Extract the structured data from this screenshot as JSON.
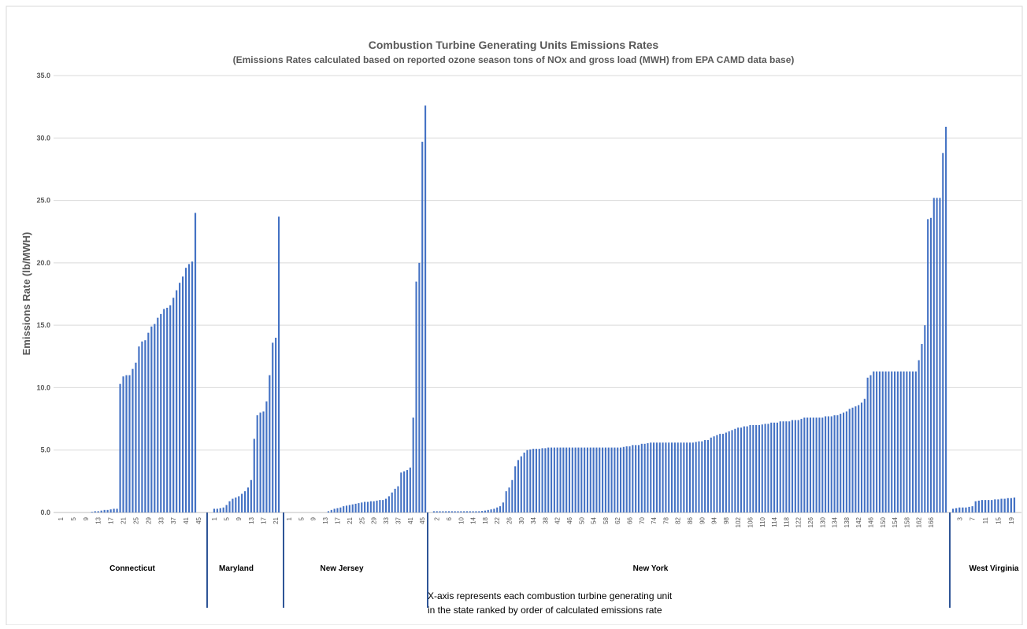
{
  "chart_data": {
    "type": "bar",
    "title": "Combustion Turbine Generating Units Emissions Rates",
    "subtitle": "(Emissions Rates calculated based on reported ozone season tons of NOx and gross load (MWH) from EPA CAMD data base)",
    "ylabel": "Emissions Rate (lb/MWH)",
    "ylim": [
      0,
      35
    ],
    "yticks": [
      "0.0",
      "5.0",
      "10.0",
      "15.0",
      "20.0",
      "25.0",
      "30.0",
      "35.0"
    ],
    "grid": true,
    "legend": "none",
    "annotation": [
      "X-axis represents each combustion turbine generating unit",
      "in the state ranked by order of calculated emissions rate"
    ],
    "bar_color": "#4472c4",
    "divider_color": "#2f5597",
    "groups": [
      {
        "name": "Connecticut",
        "tick_labels": [
          "1",
          "5",
          "9",
          "13",
          "17",
          "21",
          "25",
          "29",
          "33",
          "37",
          "41",
          "45"
        ],
        "values": [
          0,
          0,
          0,
          0,
          0,
          0,
          0,
          0,
          0,
          0,
          0.05,
          0.1,
          0.1,
          0.15,
          0.2,
          0.2,
          0.25,
          0.3,
          0.3,
          10.3,
          10.9,
          11.0,
          11.0,
          11.5,
          12.0,
          13.3,
          13.7,
          13.8,
          14.4,
          14.9,
          15.1,
          15.6,
          15.9,
          16.3,
          16.4,
          16.6,
          17.2,
          17.8,
          18.4,
          18.9,
          19.6,
          19.9,
          20.1,
          24.0
        ]
      },
      {
        "name": "Maryland",
        "tick_labels": [
          "1",
          "5",
          "9",
          "13",
          "17",
          "21"
        ],
        "values": [
          0.3,
          0.3,
          0.35,
          0.4,
          0.6,
          0.9,
          1.1,
          1.2,
          1.3,
          1.5,
          1.7,
          2.0,
          2.6,
          5.9,
          7.8,
          8.0,
          8.1,
          8.9,
          11.0,
          13.6,
          14.0,
          23.7
        ]
      },
      {
        "name": "New Jersey",
        "tick_labels": [
          "1",
          "5",
          "9",
          "13",
          "17",
          "21",
          "25",
          "29",
          "33",
          "37",
          "41",
          "45"
        ],
        "values": [
          0,
          0,
          0,
          0,
          0,
          0,
          0,
          0,
          0,
          0,
          0,
          0,
          0,
          0.1,
          0.2,
          0.3,
          0.35,
          0.4,
          0.5,
          0.55,
          0.6,
          0.65,
          0.7,
          0.75,
          0.8,
          0.85,
          0.85,
          0.9,
          0.9,
          0.95,
          1.0,
          1.0,
          1.1,
          1.3,
          1.6,
          1.9,
          2.1,
          3.2,
          3.3,
          3.4,
          3.6,
          7.6,
          18.5,
          20.0,
          29.7,
          32.6
        ]
      },
      {
        "name": "New York",
        "tick_labels": [
          "2",
          "6",
          "10",
          "14",
          "18",
          "22",
          "26",
          "30",
          "34",
          "38",
          "42",
          "46",
          "50",
          "54",
          "58",
          "62",
          "66",
          "70",
          "74",
          "78",
          "82",
          "86",
          "90",
          "94",
          "98",
          "102",
          "106",
          "110",
          "114",
          "118",
          "122",
          "126",
          "130",
          "134",
          "138",
          "142",
          "146",
          "150",
          "154",
          "158",
          "162",
          "166"
        ],
        "values": [
          0.1,
          0.1,
          0.1,
          0.1,
          0.1,
          0.1,
          0.1,
          0.1,
          0.1,
          0.1,
          0.1,
          0.1,
          0.1,
          0.1,
          0.1,
          0.1,
          0.12,
          0.15,
          0.2,
          0.25,
          0.3,
          0.4,
          0.5,
          0.8,
          1.7,
          2.0,
          2.6,
          3.7,
          4.2,
          4.5,
          4.8,
          5.0,
          5.05,
          5.1,
          5.1,
          5.1,
          5.15,
          5.15,
          5.2,
          5.2,
          5.2,
          5.2,
          5.2,
          5.2,
          5.2,
          5.2,
          5.2,
          5.2,
          5.2,
          5.2,
          5.2,
          5.2,
          5.2,
          5.2,
          5.2,
          5.2,
          5.2,
          5.2,
          5.2,
          5.2,
          5.2,
          5.2,
          5.2,
          5.25,
          5.3,
          5.3,
          5.4,
          5.4,
          5.4,
          5.5,
          5.5,
          5.55,
          5.6,
          5.6,
          5.6,
          5.6,
          5.6,
          5.6,
          5.6,
          5.6,
          5.6,
          5.6,
          5.6,
          5.6,
          5.6,
          5.6,
          5.6,
          5.65,
          5.7,
          5.7,
          5.8,
          5.8,
          6.0,
          6.1,
          6.2,
          6.3,
          6.3,
          6.4,
          6.5,
          6.6,
          6.7,
          6.8,
          6.8,
          6.9,
          6.9,
          7.0,
          7.0,
          7.0,
          7.0,
          7.05,
          7.1,
          7.1,
          7.2,
          7.2,
          7.2,
          7.3,
          7.3,
          7.3,
          7.3,
          7.4,
          7.4,
          7.4,
          7.5,
          7.6,
          7.6,
          7.6,
          7.6,
          7.6,
          7.6,
          7.6,
          7.7,
          7.7,
          7.7,
          7.8,
          7.8,
          7.9,
          8.0,
          8.1,
          8.3,
          8.4,
          8.5,
          8.6,
          8.8,
          9.1,
          10.8,
          11.0,
          11.3,
          11.3,
          11.3,
          11.3,
          11.3,
          11.3,
          11.3,
          11.3,
          11.3,
          11.3,
          11.3,
          11.3,
          11.3,
          11.3,
          11.3,
          12.2,
          13.5,
          15.0,
          23.5,
          23.6,
          25.2,
          25.2,
          25.2,
          28.8,
          30.9
        ]
      },
      {
        "name": "West Virginia",
        "tick_labels": [
          "3",
          "7",
          "11",
          "15",
          "19"
        ],
        "values": [
          0.3,
          0.35,
          0.4,
          0.4,
          0.4,
          0.45,
          0.5,
          0.9,
          0.95,
          1.0,
          1.0,
          1.0,
          1.0,
          1.05,
          1.05,
          1.1,
          1.1,
          1.15,
          1.15,
          1.2
        ]
      }
    ]
  }
}
